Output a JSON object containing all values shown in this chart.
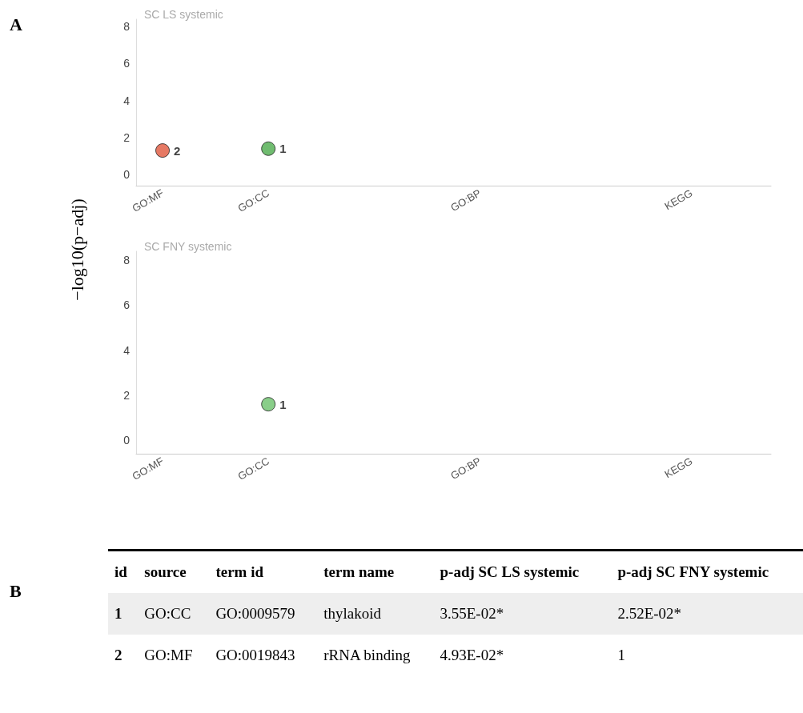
{
  "chart_data": [
    {
      "type": "scatter",
      "title": "SC LS systemic",
      "ylabel": "−log10(p−adj)",
      "annotations": [
        "A",
        {
          "text": "2",
          "x": "GO:MF",
          "y": 1.3
        },
        {
          "text": "1",
          "x": "GO:CC",
          "y": 1.4
        }
      ],
      "categories": [
        "GO:MF",
        null,
        "GO:CC",
        null,
        null,
        null,
        "GO:BP",
        null,
        null,
        null,
        "KEGG",
        null
      ],
      "ylim": [
        -0.6,
        8.4
      ],
      "yticks": [
        0,
        2,
        4,
        6,
        8
      ],
      "marker": "circle",
      "series": [
        {
          "color": "#e0573d",
          "x": [
            "GO:MF"
          ],
          "values": [
            1.3
          ]
        },
        {
          "color": "#4cab4c",
          "x": [
            "GO:CC"
          ],
          "values": [
            1.4
          ]
        }
      ]
    },
    {
      "type": "scatter",
      "title": "SC FNY systemic",
      "annotations": [
        {
          "text": "1",
          "x": "GO:CC",
          "y": 1.6
        }
      ],
      "categories": [
        "GO:MF",
        null,
        "GO:CC",
        null,
        null,
        null,
        "GO:BP",
        null,
        null,
        null,
        "KEGG",
        null
      ],
      "ylim": [
        -0.6,
        8.4
      ],
      "yticks": [
        0,
        2,
        4,
        6,
        8
      ],
      "marker": "circle",
      "series": [
        {
          "color": "#6cc26c",
          "x": [
            "GO:CC"
          ],
          "values": [
            1.6
          ]
        }
      ]
    },
    {
      "type": "other",
      "title": "B",
      "categories": [
        "id",
        "source",
        "term id",
        "term name",
        "p-adj SC LS systemic",
        "p-adj SC FNY systemic"
      ],
      "cells": [
        [
          "1",
          "GO:CC",
          "GO:0009579",
          "thylakoid",
          "3.55E-02*",
          "2.52E-02*"
        ],
        [
          "2",
          "GO:MF",
          "GO:0019843",
          "rRNA binding",
          "4.93E-02*",
          "1"
        ]
      ]
    }
  ]
}
